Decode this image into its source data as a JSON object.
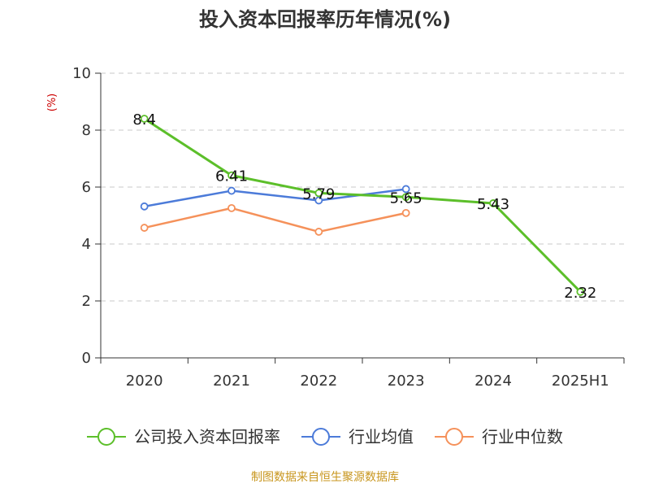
{
  "chart_data": {
    "type": "line",
    "title": "投入资本回报率历年情况(%)",
    "ylabel": "(%)",
    "xlabel": "",
    "categories": [
      "2020",
      "2021",
      "2022",
      "2023",
      "2024",
      "2025H1"
    ],
    "ylim": [
      0,
      10
    ],
    "yticks": [
      "0",
      "2",
      "4",
      "6",
      "8",
      "10"
    ],
    "grid": true,
    "legend_position": "bottom",
    "series": [
      {
        "name": "公司投入资本回报率",
        "color": "#5cbf2a",
        "values": [
          8.4,
          6.41,
          5.79,
          5.65,
          5.43,
          2.32
        ],
        "labels": [
          "8.4",
          "6.41",
          "5.79",
          "5.65",
          "5.43",
          "2.32"
        ]
      },
      {
        "name": "行业均值",
        "color": "#4c7bd9",
        "values": [
          5.32,
          5.87,
          5.53,
          5.93,
          null,
          null
        ]
      },
      {
        "name": "行业中位数",
        "color": "#f5915a",
        "values": [
          4.57,
          5.26,
          4.43,
          5.09,
          null,
          null
        ]
      }
    ]
  },
  "source": "制图数据来自恒生聚源数据库"
}
